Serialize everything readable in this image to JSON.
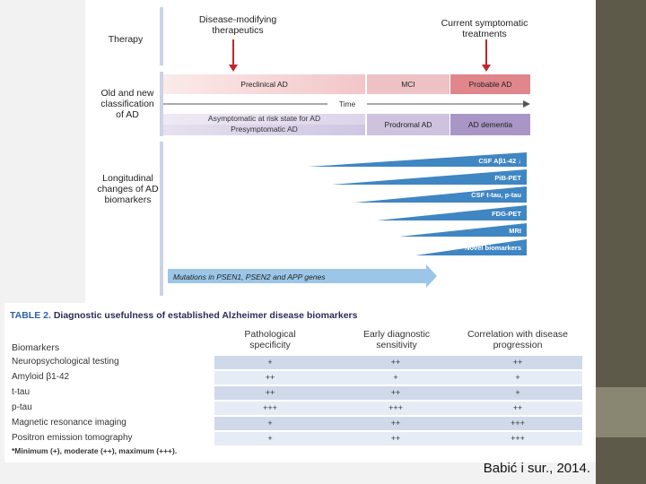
{
  "figure": {
    "therapy_label": "Therapy",
    "disease_modifying": "Disease-modifying therapeutics",
    "symptomatic": "Current symptomatic treatments",
    "classification_label": "Old and new classification of AD",
    "preclinical_ad": "Preclinical AD",
    "mci": "MCI",
    "probable_ad": "Probable AD",
    "time": "Time",
    "asymptomatic": "Asymptomatic at risk state for AD",
    "presymptomatic": "Presymptomatic AD",
    "prodromal_ad": "Prodromal AD",
    "ad_dementia": "AD dementia",
    "biomarkers_label": "Longitudinal changes of AD biomarkers",
    "biomarkers": [
      "CSF Aβ1-42 ↓",
      "PiB-PET",
      "CSF t-tau, p-tau",
      "FDG-PET",
      "MRI",
      "Novel biomarkers"
    ],
    "mutations": "Mutations in PSEN1, PSEN2 and APP genes"
  },
  "table": {
    "title_num": "TABLE 2.",
    "title_text": "Diagnostic usefulness of established Alzheimer disease biomarkers",
    "col_biomarkers": "Biomarkers",
    "col_path": "Pathological specificity",
    "col_early": "Early diagnostic sensitivity",
    "col_corr": "Correlation with disease progression",
    "rows": [
      {
        "name": "Neuropsychological testing",
        "path": "+",
        "early": "++",
        "corr": "++"
      },
      {
        "name": "Amyloid β1-42",
        "path": "++",
        "early": "+",
        "corr": "+"
      },
      {
        "name": "t-tau",
        "path": "++",
        "early": "++",
        "corr": "+"
      },
      {
        "name": "p-tau",
        "path": "+++",
        "early": "+++",
        "corr": "++"
      },
      {
        "name": "Magnetic resonance imaging",
        "path": "+",
        "early": "++",
        "corr": "+++"
      },
      {
        "name": "Positron emission tomography",
        "path": "+",
        "early": "++",
        "corr": "+++"
      }
    ],
    "footnote": "*Minimum (+), moderate (++), maximum (+++)."
  },
  "citation": "Babić i sur., 2014."
}
